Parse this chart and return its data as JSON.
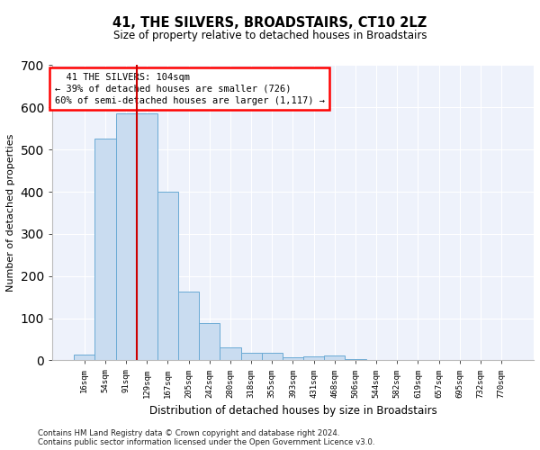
{
  "title": "41, THE SILVERS, BROADSTAIRS, CT10 2LZ",
  "subtitle": "Size of property relative to detached houses in Broadstairs",
  "xlabel": "Distribution of detached houses by size in Broadstairs",
  "ylabel": "Number of detached properties",
  "footer_line1": "Contains HM Land Registry data © Crown copyright and database right 2024.",
  "footer_line2": "Contains public sector information licensed under the Open Government Licence v3.0.",
  "annotation_line1": "  41 THE SILVERS: 104sqm",
  "annotation_line2": "← 39% of detached houses are smaller (726)",
  "annotation_line3": "60% of semi-detached houses are larger (1,117) →",
  "bar_color": "#c9dcf0",
  "bar_edge_color": "#6aaad4",
  "marker_color": "#cc0000",
  "background_color": "#eef2fb",
  "bin_labels": [
    "16sqm",
    "54sqm",
    "91sqm",
    "129sqm",
    "167sqm",
    "205sqm",
    "242sqm",
    "280sqm",
    "318sqm",
    "355sqm",
    "393sqm",
    "431sqm",
    "468sqm",
    "506sqm",
    "544sqm",
    "582sqm",
    "619sqm",
    "657sqm",
    "695sqm",
    "732sqm",
    "770sqm"
  ],
  "bar_heights": [
    13,
    525,
    585,
    585,
    400,
    163,
    88,
    30,
    19,
    19,
    7,
    10,
    12,
    4,
    0,
    0,
    0,
    0,
    0,
    0,
    0
  ],
  "marker_bin_index": 2.5,
  "ylim": [
    0,
    700
  ],
  "yticks": [
    0,
    100,
    200,
    300,
    400,
    500,
    600,
    700
  ]
}
